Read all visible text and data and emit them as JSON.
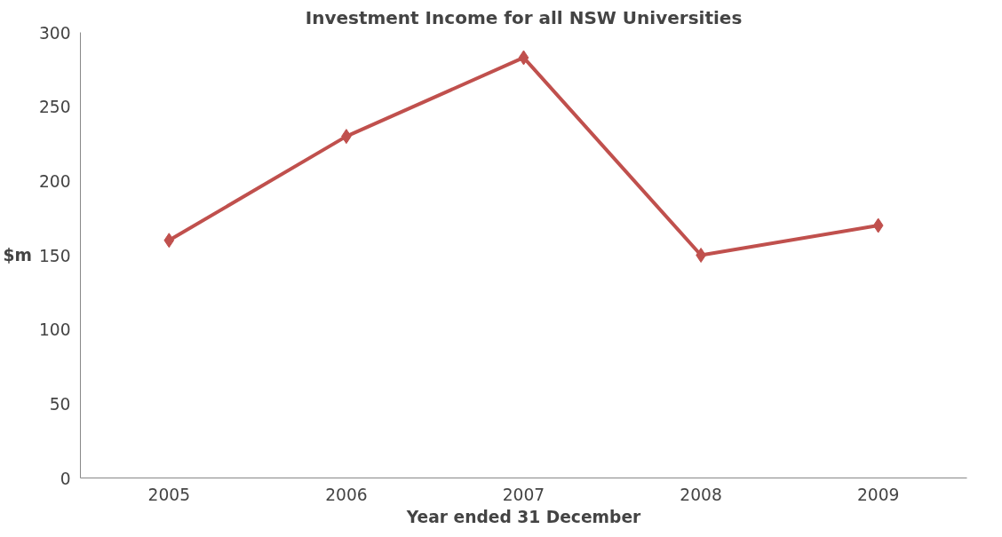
{
  "chart_data": {
    "type": "line",
    "title": "Investment Income for all NSW Universities",
    "xlabel": "Year ended 31 December",
    "ylabel": "$m",
    "categories": [
      "2005",
      "2006",
      "2007",
      "2008",
      "2009"
    ],
    "series": [
      {
        "color": "#c0504d",
        "values": [
          160,
          230,
          283,
          150,
          170
        ]
      }
    ],
    "ylim": [
      0,
      300
    ],
    "yticks": [
      0,
      50,
      100,
      150,
      200,
      250,
      300
    ],
    "grid": false,
    "marker": "diamond",
    "line_style": "solid"
  }
}
